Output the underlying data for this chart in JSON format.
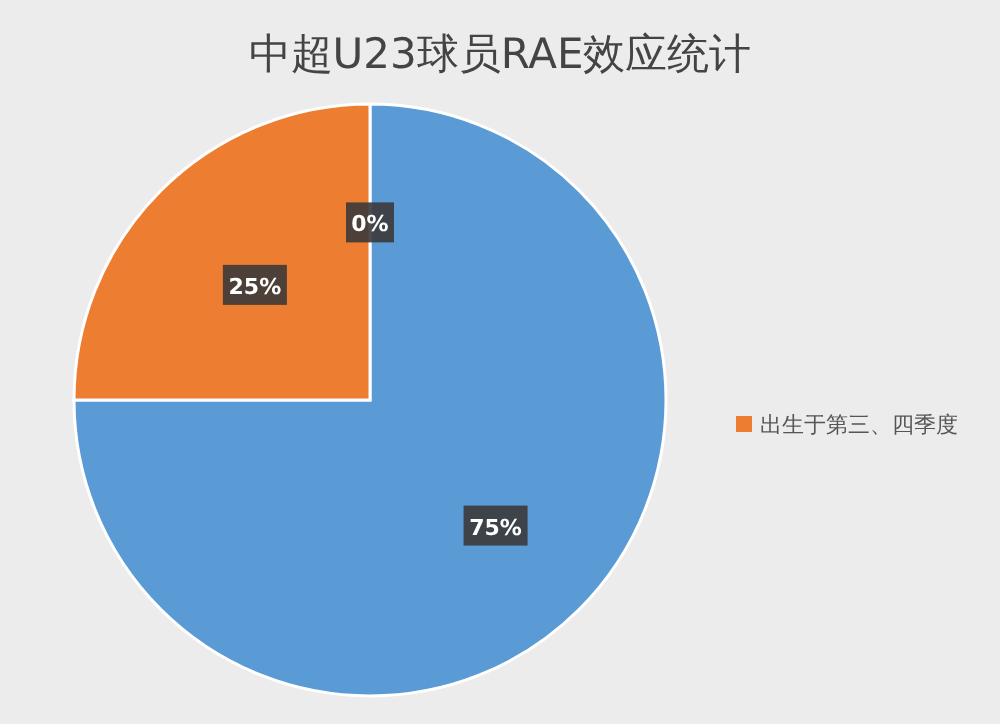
{
  "chart_data": {
    "type": "pie",
    "title": "中超U23球员RAE效应统计",
    "categories": [
      null,
      "出生于第三、四季度",
      null
    ],
    "values": [
      75,
      25,
      0
    ],
    "colors": [
      "#5b9bd5",
      "#ed7d31",
      "#a5a5a5"
    ],
    "value_labels": [
      "75%",
      "25%",
      "0%"
    ],
    "legend": "right"
  }
}
